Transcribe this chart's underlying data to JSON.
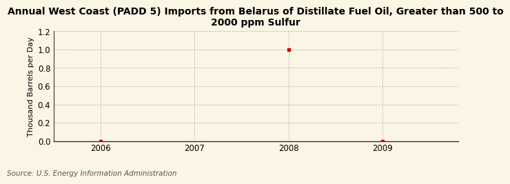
{
  "title_line1": "Annual West Coast (PADD 5) Imports from Belarus of Distillate Fuel Oil, Greater than 500 to",
  "title_line2": "2000 ppm Sulfur",
  "ylabel": "Thousand Barrels per Day",
  "source": "Source: U.S. Energy Information Administration",
  "x_data": [
    2006,
    2007,
    2008,
    2009
  ],
  "y_data": [
    0.0,
    null,
    1.0,
    0.0
  ],
  "point_color": "#cc0000",
  "background_color": "#faf5e4",
  "plot_background_color": "#faf5e4",
  "grid_color": "#aaaaaa",
  "ylim": [
    0.0,
    1.2
  ],
  "yticks": [
    0.0,
    0.2,
    0.4,
    0.6,
    0.8,
    1.0,
    1.2
  ],
  "xticks": [
    2006,
    2007,
    2008,
    2009
  ],
  "xlim": [
    2005.5,
    2009.8
  ],
  "title_fontsize": 10,
  "ylabel_fontsize": 8,
  "source_fontsize": 7.5,
  "marker_size": 3.5
}
